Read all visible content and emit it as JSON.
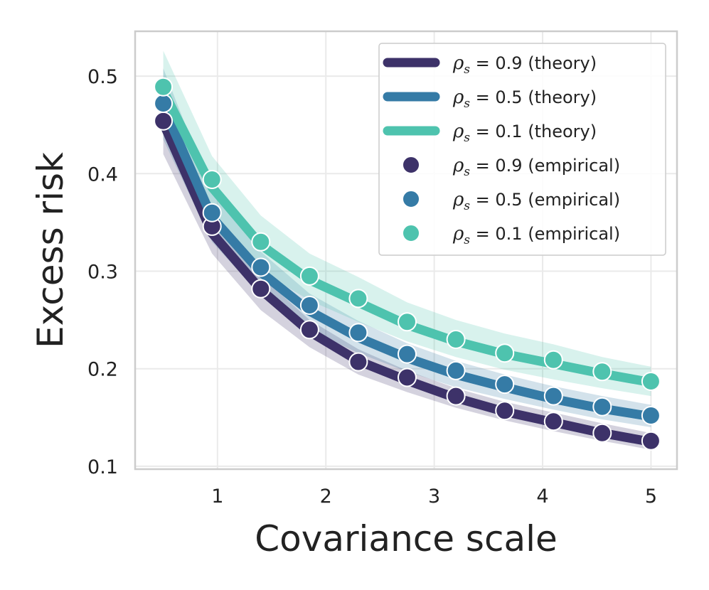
{
  "chart_data": {
    "type": "line",
    "title": "",
    "xlabel": "Covariance scale",
    "ylabel": "Excess risk",
    "xlim": [
      0.24,
      5.24
    ],
    "ylim": [
      0.097,
      0.546
    ],
    "xticks": [
      1,
      2,
      3,
      4,
      5
    ],
    "xtick_labels": [
      "1",
      "2",
      "3",
      "4",
      "5"
    ],
    "yticks": [
      0.1,
      0.2,
      0.3,
      0.4,
      0.5
    ],
    "ytick_labels": [
      "0.1",
      "0.2",
      "0.3",
      "0.4",
      "0.5"
    ],
    "grid": true,
    "legend_position": "top-right",
    "x": [
      0.5,
      0.95,
      1.4,
      1.85,
      2.3,
      2.75,
      3.2,
      3.65,
      4.1,
      4.55,
      5.0
    ],
    "series": [
      {
        "name_prefix": "ρ",
        "name_sub": "s",
        "name_value": " = 0.9",
        "name_suffix": " (theory)",
        "kind": "theory",
        "color": "#3d3269",
        "values": [
          0.452,
          0.339,
          0.281,
          0.238,
          0.208,
          0.188,
          0.17,
          0.156,
          0.145,
          0.134,
          0.125
        ],
        "band_lower": [
          0.42,
          0.318,
          0.26,
          0.222,
          0.194,
          0.176,
          0.16,
          0.147,
          0.136,
          0.126,
          0.117
        ],
        "band_upper": [
          0.478,
          0.355,
          0.295,
          0.25,
          0.22,
          0.198,
          0.18,
          0.166,
          0.155,
          0.144,
          0.134
        ]
      },
      {
        "name_prefix": "ρ",
        "name_sub": "s",
        "name_value": " = 0.5",
        "name_suffix": " (theory)",
        "kind": "theory",
        "color": "#357ba6",
        "values": [
          0.469,
          0.355,
          0.299,
          0.259,
          0.232,
          0.211,
          0.194,
          0.181,
          0.169,
          0.159,
          0.151
        ],
        "band_lower": [
          0.435,
          0.33,
          0.275,
          0.24,
          0.216,
          0.197,
          0.181,
          0.169,
          0.158,
          0.148,
          0.14
        ],
        "band_upper": [
          0.508,
          0.38,
          0.32,
          0.277,
          0.249,
          0.226,
          0.208,
          0.194,
          0.182,
          0.172,
          0.163
        ]
      },
      {
        "name_prefix": "ρ",
        "name_sub": "s",
        "name_value": " = 0.1",
        "name_suffix": " (theory)",
        "kind": "theory",
        "color": "#4ec3ae",
        "values": [
          0.485,
          0.386,
          0.327,
          0.291,
          0.268,
          0.245,
          0.228,
          0.215,
          0.205,
          0.195,
          0.186
        ],
        "band_lower": [
          0.45,
          0.358,
          0.3,
          0.27,
          0.248,
          0.228,
          0.212,
          0.199,
          0.189,
          0.18,
          0.172
        ],
        "band_upper": [
          0.526,
          0.418,
          0.357,
          0.318,
          0.294,
          0.268,
          0.25,
          0.236,
          0.225,
          0.212,
          0.202
        ]
      },
      {
        "name_prefix": "ρ",
        "name_sub": "s",
        "name_value": " = 0.9",
        "name_suffix": " (empirical)",
        "kind": "empirical",
        "color": "#3d3269",
        "values": [
          0.454,
          0.346,
          0.282,
          0.24,
          0.207,
          0.191,
          0.172,
          0.157,
          0.146,
          0.134,
          0.126
        ]
      },
      {
        "name_prefix": "ρ",
        "name_sub": "s",
        "name_value": " = 0.5",
        "name_suffix": " (empirical)",
        "kind": "empirical",
        "color": "#357ba6",
        "values": [
          0.472,
          0.36,
          0.304,
          0.265,
          0.237,
          0.215,
          0.198,
          0.184,
          0.172,
          0.161,
          0.152
        ]
      },
      {
        "name_prefix": "ρ",
        "name_sub": "s",
        "name_value": " = 0.1",
        "name_suffix": " (empirical)",
        "kind": "empirical",
        "color": "#4ec3ae",
        "values": [
          0.489,
          0.394,
          0.33,
          0.295,
          0.272,
          0.248,
          0.23,
          0.216,
          0.209,
          0.197,
          0.187
        ]
      }
    ]
  }
}
